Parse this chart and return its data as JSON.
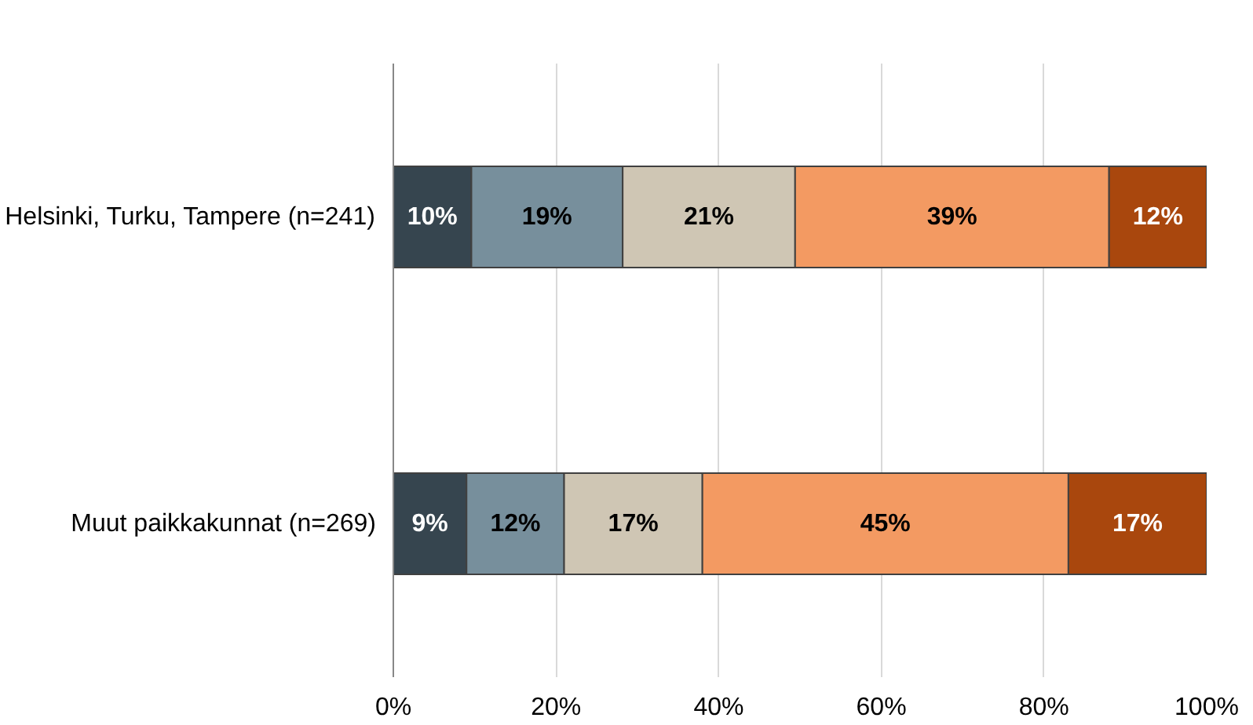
{
  "chart_data": {
    "type": "bar",
    "orientation": "horizontal",
    "stacked": true,
    "categories": [
      "Helsinki, Turku, Tampere (n=241)",
      "Muut paikkakunnat (n=269)"
    ],
    "series": [
      {
        "color": "#36454f",
        "values": [
          9.6,
          9
        ],
        "value_labels": [
          "10%",
          "9%"
        ]
      },
      {
        "color": "#778f9c",
        "values": [
          18.6,
          12
        ],
        "value_labels": [
          "19%",
          "12%"
        ]
      },
      {
        "color": "#cfc6b4",
        "values": [
          21.2,
          17
        ],
        "value_labels": [
          "21%",
          "17%"
        ]
      },
      {
        "color": "#f39a62",
        "values": [
          38.6,
          45
        ],
        "value_labels": [
          "39%",
          "45%"
        ]
      },
      {
        "color": "#a9470d",
        "values": [
          12,
          17
        ],
        "value_labels": [
          "12%",
          "17%"
        ]
      }
    ],
    "xlim": [
      0,
      100
    ],
    "xticks": [
      {
        "value": 0,
        "label": "0%"
      },
      {
        "value": 20,
        "label": "20%"
      },
      {
        "value": 40,
        "label": "40%"
      },
      {
        "value": 60,
        "label": "60%"
      },
      {
        "value": 80,
        "label": "80%"
      },
      {
        "value": 100,
        "label": "100%"
      }
    ],
    "grid": "x"
  }
}
